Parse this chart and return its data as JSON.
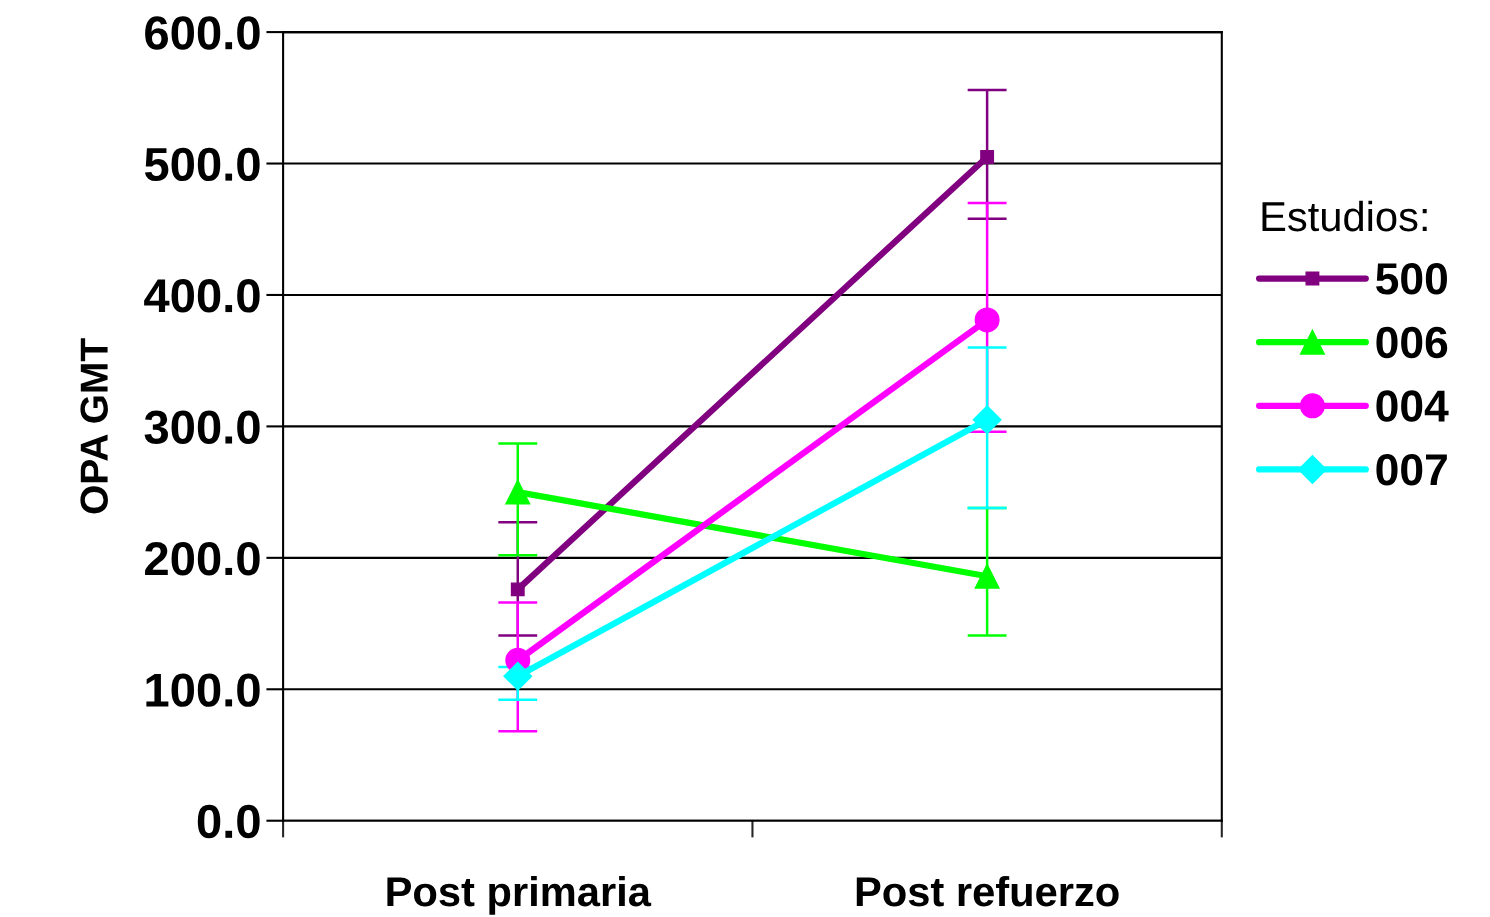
{
  "chart_data": {
    "type": "line",
    "ylabel": "OPA GMT",
    "legend_title": "Estudios:",
    "categories": [
      "Post primaria",
      "Post refuerzo"
    ],
    "series": [
      {
        "name": "500",
        "color": "#800080",
        "marker": "square",
        "values": [
          176,
          505
        ],
        "errors": [
          [
            141,
            227
          ],
          [
            458,
            556
          ]
        ]
      },
      {
        "name": "006",
        "color": "#00ff00",
        "marker": "triangle",
        "values": [
          250,
          186
        ],
        "errors": [
          [
            202,
            287
          ],
          [
            141,
            238
          ]
        ]
      },
      {
        "name": "004",
        "color": "#ff00ff",
        "marker": "circle",
        "values": [
          122,
          381
        ],
        "errors": [
          [
            68,
            166
          ],
          [
            296,
            470
          ]
        ]
      },
      {
        "name": "007",
        "color": "#00ffff",
        "marker": "diamond",
        "values": [
          110,
          305
        ],
        "errors": [
          [
            92,
            117
          ],
          [
            238,
            360
          ]
        ]
      }
    ],
    "ylim": [
      0,
      600
    ],
    "yticks": [
      {
        "value": 0,
        "label": "0.0"
      },
      {
        "value": 100,
        "label": "100.0"
      },
      {
        "value": 200,
        "label": "200.0"
      },
      {
        "value": 300,
        "label": "300.0"
      },
      {
        "value": 400,
        "label": "400.0"
      },
      {
        "value": 500,
        "label": "500.0"
      },
      {
        "value": 600,
        "label": "600.0"
      }
    ],
    "grid": "y",
    "legend": "right"
  }
}
